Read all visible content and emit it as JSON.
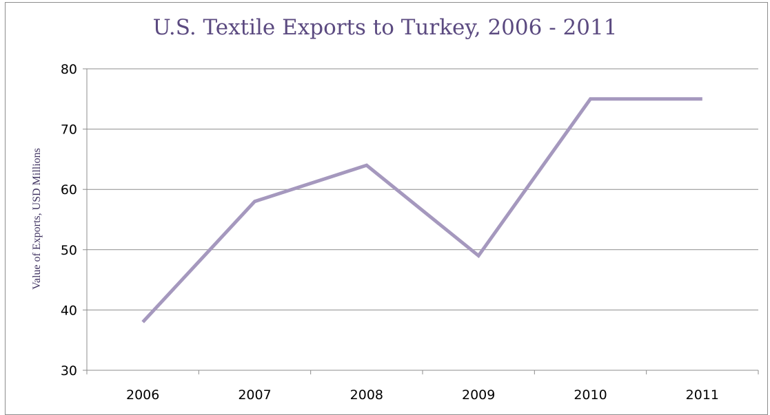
{
  "chart_data": {
    "type": "line",
    "title": "U.S. Textile Exports to Turkey, 2006 - 2011",
    "xlabel": "",
    "ylabel": "Value of Exports, USD Millions",
    "categories": [
      "2006",
      "2007",
      "2008",
      "2009",
      "2010",
      "2011"
    ],
    "series": [
      {
        "values": [
          38,
          58,
          64,
          49,
          75,
          75
        ]
      }
    ],
    "ylim": [
      30,
      80
    ],
    "yticks": [
      30,
      40,
      50,
      60,
      70,
      80
    ],
    "grid": true,
    "legend": "none",
    "line_color": "#a598be",
    "title_color": "#5b4a80"
  }
}
